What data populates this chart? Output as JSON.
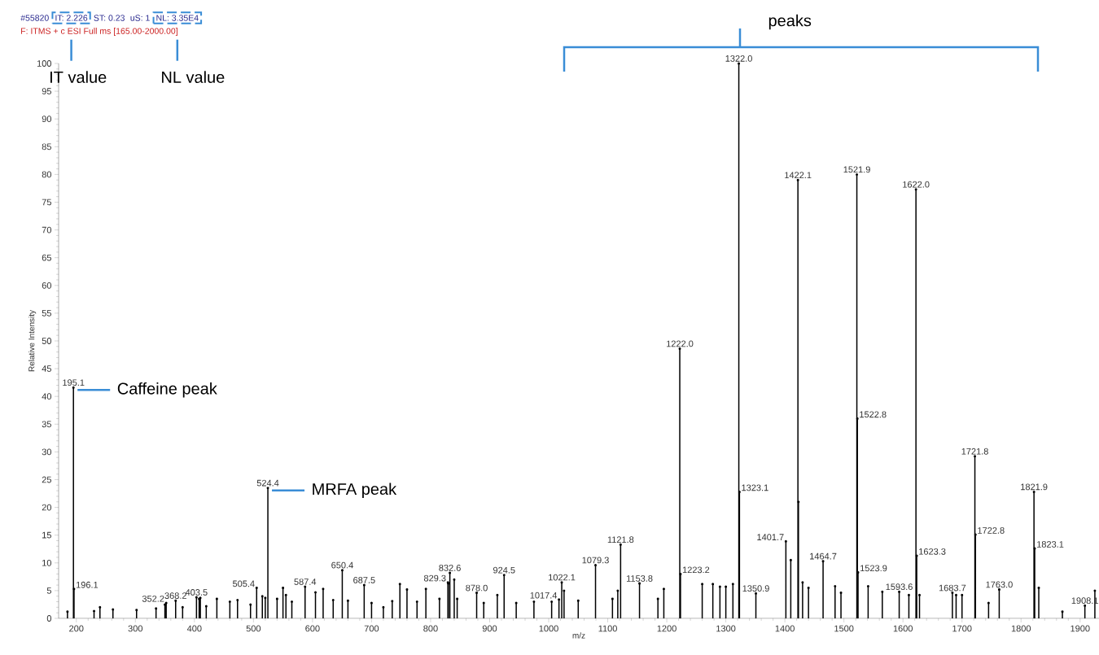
{
  "chart_data": {
    "type": "lollipop",
    "xlabel": "m/z",
    "ylabel": "Relative Intensity",
    "x": [
      185,
      195.1,
      196.1,
      230,
      240,
      262,
      302,
      335,
      350,
      352.2,
      368.2,
      380,
      403.5,
      408,
      410,
      420,
      438,
      460,
      473,
      495,
      505.4,
      515,
      520,
      524.4,
      540,
      550,
      555,
      565,
      587.4,
      605,
      618,
      635,
      650.4,
      660,
      687.5,
      700,
      720,
      735,
      748,
      760,
      777,
      792,
      815,
      829.3,
      830,
      832.6,
      840,
      845,
      878.0,
      890,
      913,
      924.5,
      945,
      975,
      1005,
      1017.4,
      1022.1,
      1026,
      1050,
      1079.3,
      1108,
      1117,
      1121.8,
      1153.8,
      1185,
      1195,
      1222.0,
      1223.2,
      1260,
      1278,
      1290,
      1300,
      1312,
      1322.0,
      1323.1,
      1350.9,
      1401.7,
      1410,
      1422.1,
      1423.0,
      1430,
      1440,
      1464.7,
      1485,
      1495,
      1521.9,
      1522.8,
      1523.9,
      1541,
      1565,
      1593.6,
      1610,
      1622.0,
      1623.3,
      1628,
      1683.7,
      1690,
      1700,
      1721.8,
      1722.8,
      1745,
      1763.0,
      1821.9,
      1823.1,
      1830,
      1870,
      1908.1,
      1925
    ],
    "values": [
      1.2,
      41.6,
      5.3,
      1.3,
      2,
      1.6,
      1.5,
      1.8,
      2.5,
      2.8,
      3.2,
      2,
      3.8,
      3.5,
      3.7,
      2.2,
      3.5,
      3,
      3.3,
      2.5,
      5.5,
      4,
      3.7,
      23.5,
      3.5,
      5.5,
      4.2,
      3,
      5.7,
      4.7,
      5.3,
      3.3,
      8.7,
      3.2,
      6,
      2.8,
      2,
      3.1,
      6.2,
      5.2,
      3,
      5.3,
      3.5,
      6.5,
      6.3,
      8.2,
      7,
      3.5,
      4.6,
      2.8,
      4.2,
      7.8,
      2.8,
      3,
      3,
      3.4,
      6.5,
      5,
      3.2,
      9.6,
      3.5,
      5,
      13.3,
      6.3,
      3.5,
      5.3,
      48.6,
      8,
      6.2,
      6.2,
      5.7,
      5.7,
      6.2,
      100,
      22.8,
      4.5,
      13.9,
      10.5,
      79,
      21,
      6.5,
      5.5,
      10.3,
      5.8,
      4.6,
      80,
      36,
      8.3,
      5.8,
      4.8,
      4.8,
      4.2,
      77.3,
      11.3,
      4.2,
      4.6,
      4.2,
      4.2,
      29.2,
      15.1,
      2.8,
      5.2,
      22.8,
      12.6,
      5.5,
      1.2,
      2.3,
      5
    ],
    "color": "#000000",
    "xlim": [
      170,
      1932
    ],
    "ylim": [
      0,
      100
    ],
    "xticks": [
      200,
      300,
      400,
      500,
      600,
      700,
      800,
      900,
      1000,
      1100,
      1200,
      1300,
      1400,
      1500,
      1600,
      1700,
      1800,
      1900
    ],
    "yticks": [
      0,
      5,
      10,
      15,
      20,
      25,
      30,
      35,
      40,
      45,
      50,
      55,
      60,
      65,
      70,
      75,
      80,
      85,
      90,
      95,
      100
    ],
    "annotations": [
      "#55820",
      "IT: 2.226",
      "ST: 0.23",
      "uS: 1",
      "NL: 3.35E4",
      "F: ITMS + c ESI Full ms [165.00-2000.00]",
      "IT value",
      "NL value",
      "peaks",
      {
        "text": "Caffeine peak",
        "x": 195.1,
        "y": 41.6
      },
      {
        "text": "MRFA peak",
        "x": 524.4,
        "y": 23.5
      },
      {
        "text": "195.1",
        "x": 195.1,
        "y": 41.6
      },
      {
        "text": "196.1",
        "x": 196.1,
        "y": 5.3
      },
      {
        "text": "352.2",
        "x": 352.2,
        "y": 2.8
      },
      {
        "text": "368.2",
        "x": 368.2,
        "y": 3.2
      },
      {
        "text": "403.5",
        "x": 403.5,
        "y": 3.8
      },
      {
        "text": "505.4",
        "x": 505.4,
        "y": 5.5
      },
      {
        "text": "524.4",
        "x": 524.4,
        "y": 23.5
      },
      {
        "text": "587.4",
        "x": 587.4,
        "y": 5.7
      },
      {
        "text": "650.4",
        "x": 650.4,
        "y": 8.7
      },
      {
        "text": "687.5",
        "x": 687.5,
        "y": 6
      },
      {
        "text": "829.3",
        "x": 829.3,
        "y": 6.5
      },
      {
        "text": "832.6",
        "x": 832.6,
        "y": 8.2
      },
      {
        "text": "878.0",
        "x": 878.0,
        "y": 4.6
      },
      {
        "text": "924.5",
        "x": 924.5,
        "y": 7.8
      },
      {
        "text": "1017.4",
        "x": 1017.4,
        "y": 3.4
      },
      {
        "text": "1022.1",
        "x": 1022.1,
        "y": 6.5
      },
      {
        "text": "1079.3",
        "x": 1079.3,
        "y": 9.6
      },
      {
        "text": "1121.8",
        "x": 1121.8,
        "y": 13.3
      },
      {
        "text": "1153.8",
        "x": 1153.8,
        "y": 6.3
      },
      {
        "text": "1222.0",
        "x": 1222.0,
        "y": 48.6
      },
      {
        "text": "1223.2",
        "x": 1223.2,
        "y": 8
      },
      {
        "text": "1322.0",
        "x": 1322.0,
        "y": 100
      },
      {
        "text": "1323.1",
        "x": 1323.1,
        "y": 22.8
      },
      {
        "text": "1350.9",
        "x": 1350.9,
        "y": 4.5
      },
      {
        "text": "1401.7",
        "x": 1401.7,
        "y": 13.9
      },
      {
        "text": "1422.1",
        "x": 1422.1,
        "y": 79
      },
      {
        "text": "1464.7",
        "x": 1464.7,
        "y": 10.3
      },
      {
        "text": "1521.9",
        "x": 1521.9,
        "y": 80
      },
      {
        "text": "1522.8",
        "x": 1522.8,
        "y": 36
      },
      {
        "text": "1523.9",
        "x": 1523.9,
        "y": 8.3
      },
      {
        "text": "1593.6",
        "x": 1593.6,
        "y": 4.8
      },
      {
        "text": "1622.0",
        "x": 1622.0,
        "y": 77.3
      },
      {
        "text": "1623.3",
        "x": 1623.3,
        "y": 11.3
      },
      {
        "text": "1683.7",
        "x": 1683.7,
        "y": 4.6
      },
      {
        "text": "1721.8",
        "x": 1721.8,
        "y": 29.2
      },
      {
        "text": "1722.8",
        "x": 1722.8,
        "y": 15.1
      },
      {
        "text": "1763.0",
        "x": 1763.0,
        "y": 5.2
      },
      {
        "text": "1821.9",
        "x": 1821.9,
        "y": 22.8
      },
      {
        "text": "1823.1",
        "x": 1823.1,
        "y": 12.6
      },
      {
        "text": "1908.1",
        "x": 1908.1,
        "y": 2.3
      }
    ]
  }
}
